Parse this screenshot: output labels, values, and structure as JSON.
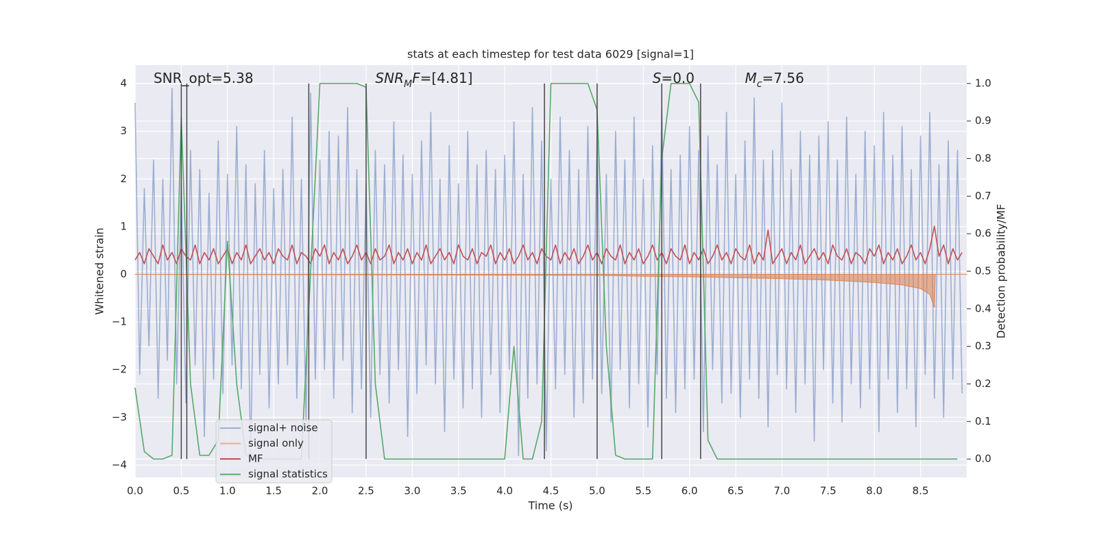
{
  "chart_data": {
    "type": "line",
    "title": "stats at each timestep for test data 6029 [signal=1]",
    "xlabel": "Time (s)",
    "ylabel": "Whitened strain",
    "y2label": "Detection probability/MF",
    "xlim": [
      0,
      9.0
    ],
    "ylim": [
      -4.26,
      4.39
    ],
    "y2lim": [
      -0.049,
      1.049
    ],
    "xticks": [
      {
        "value": 0,
        "label": "0.0"
      },
      0.5,
      {
        "value": 1,
        "label": "1.0"
      },
      1.5,
      {
        "value": 2,
        "label": "2.0"
      },
      2.5,
      {
        "value": 3,
        "label": "3.0"
      },
      3.5,
      {
        "value": 4,
        "label": "4.0"
      },
      4.5,
      {
        "value": 5,
        "label": "5.0"
      },
      5.5,
      {
        "value": 6,
        "label": "6.0"
      },
      6.5,
      {
        "value": 7,
        "label": "7.0"
      },
      7.5,
      {
        "value": 8,
        "label": "8.0"
      },
      8.5
    ],
    "yticks": [
      {
        "value": -4,
        "label": "−4"
      },
      {
        "value": -3,
        "label": "−3"
      },
      {
        "value": -2,
        "label": "−2"
      },
      {
        "value": -1,
        "label": "−1"
      },
      0,
      1,
      2,
      3,
      4
    ],
    "y2ticks": [
      {
        "value": 0,
        "label": "0.0"
      },
      0.1,
      0.2,
      0.3,
      0.4,
      0.5,
      0.6,
      0.7,
      0.8,
      0.9,
      {
        "value": 1,
        "label": "1.0"
      }
    ],
    "grid": true,
    "legend": "lower left",
    "x": [
      0,
      0.05,
      0.1,
      0.15,
      0.2,
      0.25,
      0.3,
      0.35,
      0.4,
      0.45,
      0.5,
      0.55,
      0.6,
      0.65,
      0.7,
      0.75,
      0.8,
      0.85,
      0.9,
      0.95,
      1,
      1.05,
      1.1,
      1.15,
      1.2,
      1.25,
      1.3,
      1.35,
      1.4,
      1.45,
      1.5,
      1.55,
      1.6,
      1.65,
      1.7,
      1.75,
      1.8,
      1.85,
      1.9,
      1.95,
      2,
      2.05,
      2.1,
      2.15,
      2.2,
      2.25,
      2.3,
      2.35,
      2.4,
      2.45,
      2.5,
      2.55,
      2.6,
      2.65,
      2.7,
      2.75,
      2.8,
      2.85,
      2.9,
      2.95,
      3,
      3.05,
      3.1,
      3.15,
      3.2,
      3.25,
      3.3,
      3.35,
      3.4,
      3.45,
      3.5,
      3.55,
      3.6,
      3.65,
      3.7,
      3.75,
      3.8,
      3.85,
      3.9,
      3.95,
      4,
      4.05,
      4.1,
      4.15,
      4.2,
      4.25,
      4.3,
      4.35,
      4.4,
      4.45,
      4.5,
      4.55,
      4.6,
      4.65,
      4.7,
      4.75,
      4.8,
      4.85,
      4.9,
      4.95,
      5,
      5.05,
      5.1,
      5.15,
      5.2,
      5.25,
      5.3,
      5.35,
      5.4,
      5.45,
      5.5,
      5.55,
      5.6,
      5.65,
      5.7,
      5.75,
      5.8,
      5.85,
      5.9,
      5.95,
      6,
      6.05,
      6.1,
      6.15,
      6.2,
      6.25,
      6.3,
      6.35,
      6.4,
      6.45,
      6.5,
      6.55,
      6.6,
      6.65,
      6.7,
      6.75,
      6.8,
      6.85,
      6.9,
      6.95,
      7,
      7.05,
      7.1,
      7.15,
      7.2,
      7.25,
      7.3,
      7.35,
      7.4,
      7.45,
      7.5,
      7.55,
      7.6,
      7.65,
      7.7,
      7.75,
      7.8,
      7.85,
      7.9,
      7.95,
      8,
      8.05,
      8.1,
      8.15,
      8.2,
      8.25,
      8.3,
      8.35,
      8.4,
      8.45,
      8.5,
      8.55,
      8.6,
      8.65,
      8.7,
      8.75,
      8.8,
      8.85,
      8.9,
      8.95
    ],
    "series": [
      {
        "name": "signal+ noise",
        "color": "#4c72b0",
        "alpha": 0.5,
        "values": [
          3.6,
          -2.1,
          1.8,
          -1.5,
          2.4,
          -2.6,
          2.0,
          -1.8,
          3.9,
          -2.3,
          1.9,
          -2.7,
          2.6,
          -1.9,
          2.2,
          -3.4,
          1.7,
          -2.2,
          2.8,
          -2.5,
          2.1,
          -1.9,
          3.1,
          -2.4,
          2.3,
          -3.9,
          1.9,
          -2.1,
          2.6,
          -2.8,
          1.8,
          -2.3,
          2.2,
          -1.9,
          3.3,
          -2.6,
          2.0,
          -3.1,
          3.8,
          -2.2,
          2.4,
          -2.0,
          3.0,
          -2.6,
          2.9,
          -1.8,
          3.5,
          -2.9,
          2.2,
          -2.4,
          1.9,
          -3.0,
          2.6,
          -2.1,
          2.3,
          -2.7,
          3.2,
          -2.0,
          2.5,
          -3.4,
          2.1,
          -2.5,
          2.8,
          -1.9,
          3.4,
          -2.3,
          2.0,
          -3.3,
          2.7,
          -2.2,
          1.9,
          -2.8,
          3.0,
          -2.4,
          2.3,
          -3.0,
          2.6,
          -2.1,
          2.2,
          -2.9,
          2.5,
          -2.0,
          3.2,
          -3.8,
          2.1,
          -2.6,
          3.5,
          -2.3,
          2.8,
          -3.7,
          2.0,
          -2.4,
          3.3,
          -2.1,
          2.6,
          -3.0,
          2.2,
          -2.7,
          3.1,
          -2.2,
          2.9,
          -2.5,
          2.1,
          -3.1,
          3.0,
          -2.0,
          2.4,
          -2.8,
          3.3,
          -2.3,
          2.0,
          -3.2,
          2.7,
          -2.1,
          3.5,
          -2.6,
          2.2,
          -2.9,
          2.5,
          -2.4,
          3.1,
          -2.2,
          2.6,
          -3.3,
          2.9,
          -2.0,
          2.3,
          -2.7,
          3.4,
          -2.5,
          2.1,
          -3.0,
          2.8,
          -2.2,
          3.7,
          -2.6,
          2.4,
          -3.2,
          2.6,
          -2.1,
          3.6,
          -2.4,
          2.2,
          -2.9,
          3.0,
          -2.3,
          2.5,
          -3.5,
          2.9,
          -2.0,
          3.2,
          -2.7,
          2.4,
          -3.1,
          3.3,
          -2.3,
          2.1,
          -2.8,
          3.0,
          -2.4,
          2.7,
          -3.3,
          3.4,
          -2.2,
          2.5,
          -2.9,
          3.1,
          -2.4,
          2.2,
          -3.2,
          2.9,
          -2.1,
          3.4,
          -2.6,
          2.3,
          -3.0,
          2.8,
          -2.2,
          2.6,
          -2.5
        ]
      },
      {
        "name": "signal only",
        "color": "#dd8452",
        "alpha": 0.6,
        "x": [
          0,
          5.0,
          5.5,
          6.0,
          6.5,
          7.0,
          7.5,
          8.0,
          8.3,
          8.5,
          8.6,
          8.65,
          8.66,
          9.0
        ],
        "values": [
          0,
          -0.02,
          -0.04,
          -0.05,
          -0.07,
          -0.09,
          -0.12,
          -0.17,
          -0.22,
          -0.3,
          -0.42,
          -0.7,
          0,
          0
        ]
      },
      {
        "name": "MF",
        "color": "#c44e52",
        "axis": "y2",
        "values": [
          0.53,
          0.55,
          0.52,
          0.56,
          0.54,
          0.52,
          0.57,
          0.53,
          0.55,
          0.52,
          0.56,
          0.54,
          0.53,
          0.57,
          0.52,
          0.55,
          0.53,
          0.56,
          0.52,
          0.54,
          0.56,
          0.52,
          0.55,
          0.53,
          0.57,
          0.52,
          0.54,
          0.56,
          0.53,
          0.55,
          0.52,
          0.56,
          0.54,
          0.53,
          0.57,
          0.52,
          0.55,
          0.54,
          0.52,
          0.56,
          0.54,
          0.57,
          0.52,
          0.55,
          0.53,
          0.56,
          0.52,
          0.54,
          0.57,
          0.53,
          0.55,
          0.52,
          0.56,
          0.53,
          0.54,
          0.57,
          0.52,
          0.55,
          0.53,
          0.56,
          0.52,
          0.55,
          0.53,
          0.57,
          0.52,
          0.54,
          0.56,
          0.53,
          0.55,
          0.52,
          0.57,
          0.54,
          0.53,
          0.56,
          0.52,
          0.55,
          0.54,
          0.57,
          0.52,
          0.55,
          0.53,
          0.56,
          0.52,
          0.54,
          0.57,
          0.53,
          0.55,
          0.52,
          0.56,
          0.54,
          0.53,
          0.57,
          0.52,
          0.55,
          0.53,
          0.56,
          0.52,
          0.54,
          0.57,
          0.53,
          0.55,
          0.52,
          0.56,
          0.54,
          0.53,
          0.57,
          0.52,
          0.55,
          0.53,
          0.56,
          0.52,
          0.54,
          0.57,
          0.53,
          0.55,
          0.52,
          0.56,
          0.54,
          0.53,
          0.57,
          0.52,
          0.55,
          0.53,
          0.56,
          0.52,
          0.54,
          0.57,
          0.53,
          0.55,
          0.52,
          0.56,
          0.54,
          0.53,
          0.57,
          0.52,
          0.55,
          0.53,
          0.61,
          0.52,
          0.54,
          0.56,
          0.52,
          0.55,
          0.53,
          0.57,
          0.52,
          0.54,
          0.56,
          0.53,
          0.55,
          0.52,
          0.57,
          0.54,
          0.53,
          0.56,
          0.52,
          0.55,
          0.54,
          0.52,
          0.56,
          0.54,
          0.57,
          0.52,
          0.55,
          0.53,
          0.56,
          0.52,
          0.54,
          0.57,
          0.53,
          0.55,
          0.52,
          0.56,
          0.62,
          0.54,
          0.57,
          0.52,
          0.56,
          0.53,
          0.55
        ]
      },
      {
        "name": "signal statistics",
        "color": "#55a868",
        "axis": "y2",
        "x": [
          0,
          0.1,
          0.2,
          0.3,
          0.4,
          0.5,
          0.6,
          0.7,
          0.8,
          0.9,
          1,
          1.1,
          1.2,
          1.3,
          1.4,
          1.5,
          1.6,
          1.7,
          1.8,
          1.9,
          2,
          2.1,
          2.2,
          2.3,
          2.4,
          2.5,
          2.6,
          2.7,
          2.8,
          2.9,
          3,
          3.1,
          3.2,
          3.3,
          3.4,
          3.5,
          3.6,
          3.7,
          3.8,
          3.9,
          4,
          4.1,
          4.2,
          4.3,
          4.4,
          4.5,
          4.6,
          4.7,
          4.8,
          4.9,
          5,
          5.1,
          5.2,
          5.3,
          5.4,
          5.5,
          5.6,
          5.7,
          5.8,
          5.9,
          6,
          6.1,
          6.2,
          6.3,
          6.4,
          6.5,
          6.6,
          6.7,
          6.8,
          6.9,
          7,
          7.1,
          7.2,
          7.3,
          7.4,
          7.5,
          7.6,
          7.7,
          7.8,
          7.9,
          8,
          8.1,
          8.2,
          8.3,
          8.4,
          8.5,
          8.6,
          8.7,
          8.8,
          8.9
        ],
        "values": [
          0.19,
          0.02,
          0,
          0,
          0.01,
          0.91,
          0.2,
          0.01,
          0.01,
          0.05,
          0.58,
          0.2,
          0.01,
          0,
          0,
          0,
          0,
          0,
          0,
          0.5,
          1,
          1,
          1,
          1,
          1,
          0.99,
          0.2,
          0,
          0,
          0,
          0,
          0,
          0,
          0,
          0,
          0,
          0,
          0,
          0,
          0,
          0,
          0.3,
          0,
          0,
          0.1,
          1,
          1,
          1,
          1,
          1,
          0.93,
          0.3,
          0.01,
          0,
          0,
          0,
          0,
          0.8,
          1,
          1,
          1,
          0.95,
          0.05,
          0,
          0,
          0,
          0,
          0,
          0,
          0,
          0,
          0,
          0,
          0,
          0,
          0,
          0,
          0,
          0,
          0,
          0,
          0,
          0,
          0,
          0,
          0,
          0,
          0,
          0,
          0
        ]
      }
    ],
    "vlines": {
      "x": [
        0.5,
        0.56,
        1.88,
        2.5,
        4.43,
        5.0,
        5.7,
        6.12
      ],
      "ymin": 0,
      "ymax": 1,
      "axis": "y2",
      "color": "#444444"
    },
    "annotations": [
      {
        "x": 0.2,
        "y": 4.1,
        "parts": [
          {
            "text": "SNR_opt=5.38",
            "style": "normal"
          }
        ]
      },
      {
        "x": 2.6,
        "y": 4.1,
        "parts": [
          {
            "text": "SNR",
            "style": "italic"
          },
          {
            "text": "M",
            "style": "sub"
          },
          {
            "text": "F",
            "style": "italic"
          },
          {
            "text": "=[4.81]",
            "style": "normal"
          }
        ]
      },
      {
        "x": 5.6,
        "y": 4.1,
        "parts": [
          {
            "text": "S",
            "style": "italic"
          },
          {
            "text": "=0.0",
            "style": "normal"
          }
        ]
      },
      {
        "x": 6.6,
        "y": 4.1,
        "parts": [
          {
            "text": "M",
            "style": "italic"
          },
          {
            "text": "c",
            "style": "sub"
          },
          {
            "text": "=7.56",
            "style": "normal"
          }
        ]
      }
    ]
  }
}
